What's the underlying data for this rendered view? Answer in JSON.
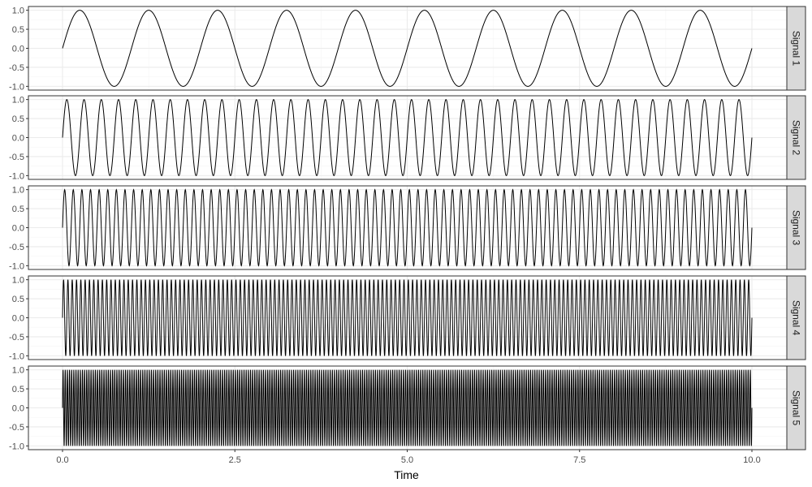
{
  "chart_data": {
    "type": "line",
    "layout": "faceted-vertical",
    "xlabel": "Time",
    "ylabel": "",
    "xlim": [
      0,
      10
    ],
    "ylim": [
      -1,
      1
    ],
    "x_ticks": [
      "0.0",
      "2.5",
      "5.0",
      "7.5",
      "10.0"
    ],
    "x_tick_values": [
      0,
      2.5,
      5,
      7.5,
      10
    ],
    "y_ticks": [
      "1.0",
      "0.5",
      "0.0",
      "-0.5",
      "-1.0"
    ],
    "y_tick_values": [
      1,
      0.5,
      0,
      -0.5,
      -1
    ],
    "grid": true,
    "legend": "none",
    "series": [
      {
        "name": "Signal 1",
        "function": "sin",
        "amplitude": 1,
        "frequency_hz": 1,
        "x_start": 0,
        "x_end": 10
      },
      {
        "name": "Signal 2",
        "function": "sin",
        "amplitude": 1,
        "frequency_hz": 4,
        "x_start": 0,
        "x_end": 10
      },
      {
        "name": "Signal 3",
        "function": "sin",
        "amplitude": 1,
        "frequency_hz": 8,
        "x_start": 0,
        "x_end": 10
      },
      {
        "name": "Signal 4",
        "function": "sin",
        "amplitude": 1,
        "frequency_hz": 16,
        "x_start": 0,
        "x_end": 10
      },
      {
        "name": "Signal 5",
        "function": "sin",
        "amplitude": 1,
        "frequency_hz": 32,
        "x_start": 0,
        "x_end": 10
      }
    ]
  },
  "colors": {
    "line": "#000000",
    "panel_border": "#333333",
    "grid_major": "#ebebeb",
    "grid_minor": "#f5f5f5",
    "strip_fill": "#d9d9d9",
    "tick_text": "#4d4d4d"
  }
}
